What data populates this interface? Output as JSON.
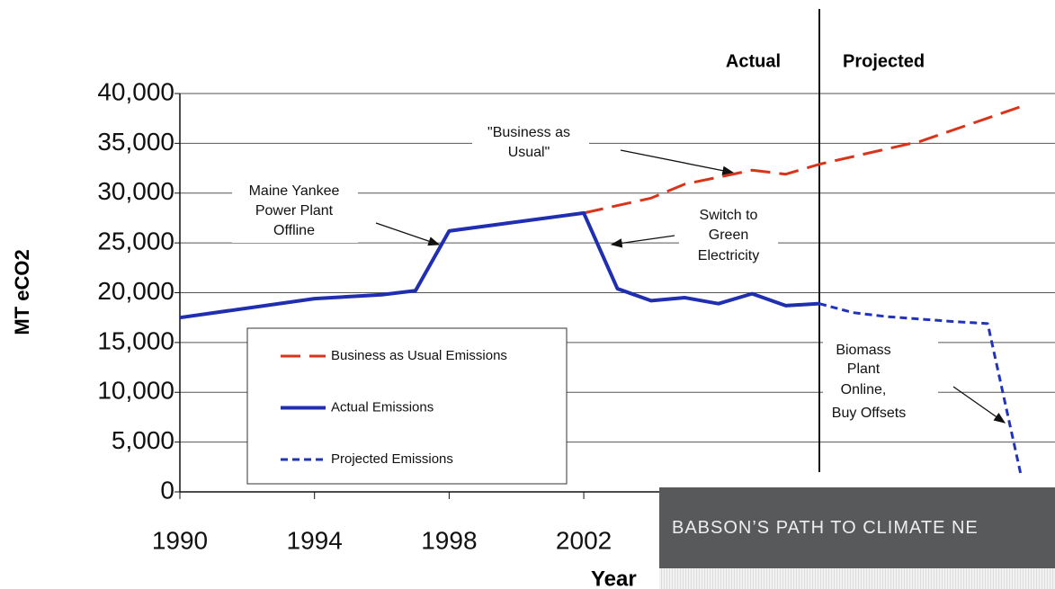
{
  "chart_data": {
    "type": "line",
    "ylabel": "MT eCO2",
    "xlabel": "Year",
    "xlim": [
      1990,
      2016
    ],
    "xticks": [
      1990,
      1994,
      1998,
      2002
    ],
    "ylim": [
      0,
      40000
    ],
    "yticks": [
      {
        "value": 0,
        "label": "0"
      },
      {
        "value": 5000,
        "label": "5,000"
      },
      {
        "value": 10000,
        "label": "10,000"
      },
      {
        "value": 15000,
        "label": "15,000"
      },
      {
        "value": 20000,
        "label": "20,000"
      },
      {
        "value": 25000,
        "label": "25,000"
      },
      {
        "value": 30000,
        "label": "30,000"
      },
      {
        "value": 35000,
        "label": "35,000"
      },
      {
        "value": 40000,
        "label": "40,000"
      }
    ],
    "grid": true,
    "series": [
      {
        "name": "Business as Usual Emissions",
        "color": "#d9341a",
        "dash": "long",
        "x": [
          2002,
          2004,
          2005,
          2007,
          2008,
          2009,
          2012,
          2015
        ],
        "values": [
          28000,
          29500,
          30900,
          32300,
          31900,
          32900,
          35200,
          38700
        ]
      },
      {
        "name": "Actual Emissions",
        "color": "#1f2fb0",
        "dash": "solid",
        "x": [
          1990,
          1994,
          1996,
          1997,
          1998,
          2002,
          2003,
          2004,
          2005,
          2006,
          2007,
          2008,
          2009
        ],
        "values": [
          17500,
          19400,
          19800,
          20200,
          26200,
          28000,
          20400,
          19200,
          19500,
          18900,
          19900,
          18700,
          18900
        ]
      },
      {
        "name": "Projected Emissions",
        "color": "#2233bb",
        "dash": "short",
        "x": [
          2009,
          2010,
          2011,
          2013,
          2014,
          2015
        ],
        "values": [
          18900,
          18000,
          17600,
          17100,
          16900,
          1500
        ]
      }
    ],
    "legend": "lower-left",
    "period_labels": [
      "Actual",
      "Projected"
    ],
    "annotations": [
      {
        "lines": [
          "\"Business as",
          "Usual\""
        ]
      },
      {
        "lines": [
          "Maine Yankee",
          "Power Plant",
          "Offline"
        ]
      },
      {
        "lines": [
          "Switch to",
          "Green",
          "Electricity"
        ]
      },
      {
        "lines": [
          "Biomass",
          "Plant",
          "Online,",
          "Buy Offsets"
        ]
      }
    ]
  },
  "overlay": {
    "title": "BABSON’S PATH TO CLIMATE NE"
  }
}
